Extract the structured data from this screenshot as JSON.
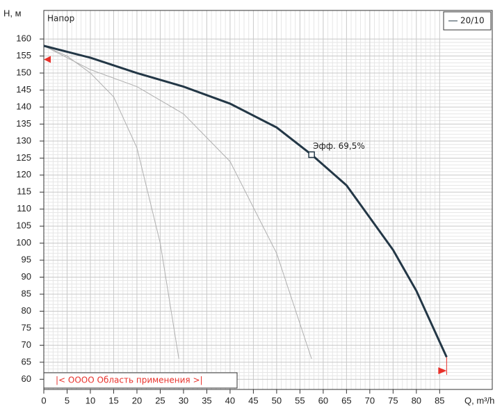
{
  "chart_data": {
    "type": "line",
    "ylabel": "H, м",
    "xlabel": "Q, m³/h",
    "curve_label": "Напор",
    "xlim": [
      0,
      96.3
    ],
    "ylim": [
      57,
      168.4
    ],
    "xticks": [
      0,
      5,
      10,
      15,
      20,
      25,
      30,
      35,
      40,
      45,
      50,
      55,
      60,
      65,
      70,
      75,
      80,
      85
    ],
    "yticks": [
      60,
      65,
      70,
      75,
      80,
      85,
      90,
      95,
      100,
      105,
      110,
      115,
      120,
      125,
      130,
      135,
      140,
      145,
      150,
      155,
      160
    ],
    "grid": true,
    "legend": "top-right",
    "series": [
      {
        "name": "20/10",
        "color": "#233746",
        "x": [
          0,
          10,
          20,
          30,
          40,
          50,
          57.5,
          65,
          75,
          80,
          86.5
        ],
        "values": [
          158,
          154.5,
          150,
          146,
          141,
          134,
          126,
          117,
          98,
          86,
          66.5
        ]
      },
      {
        "color": "#b0b0b0",
        "x": [
          0,
          5,
          10,
          15,
          20,
          25,
          29
        ],
        "values": [
          158,
          155,
          150,
          143,
          128,
          100,
          66
        ]
      },
      {
        "color": "#b0b0b0",
        "x": [
          0,
          10,
          20,
          30,
          40,
          50,
          57.5
        ],
        "values": [
          158,
          151,
          146,
          138,
          124,
          97,
          66
        ]
      }
    ],
    "annotation": {
      "text": "Эфф.  69,5%",
      "x": 57.5,
      "y": 126
    },
    "range_text": "|< OOOO Область применения >|",
    "range_markers": {
      "h": 154,
      "q": 86.5,
      "q_h": 62.5
    }
  }
}
